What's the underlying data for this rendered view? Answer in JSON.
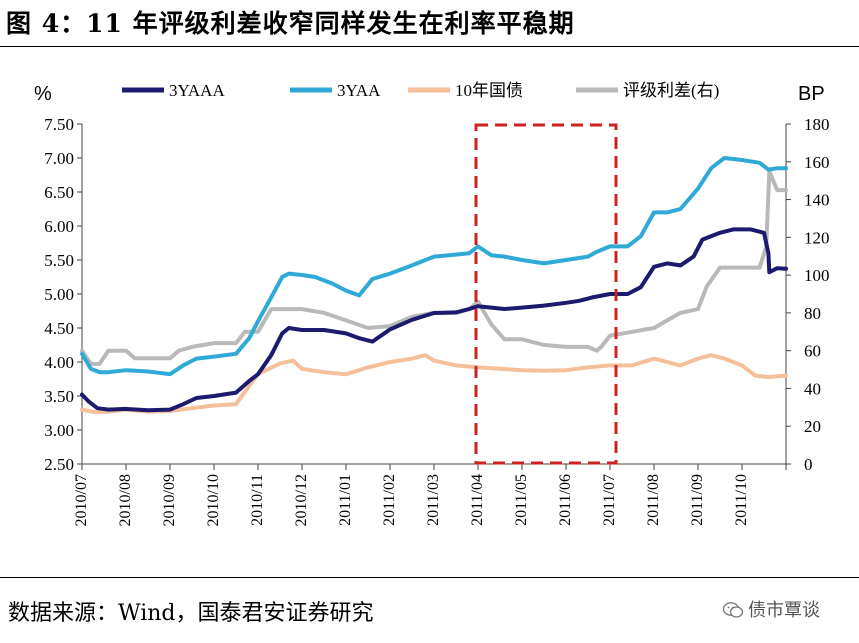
{
  "figure": {
    "title": "图 4：11 年评级利差收窄同样发生在利率平稳期",
    "source": "数据来源：Wind，国泰君安证券研究",
    "watermark": "债市覃谈"
  },
  "colors": {
    "aaa3y": "#1b1a6e",
    "aa3y": "#2fa9d6",
    "gov10y": "#f5bf9a",
    "spread": "#b9b9b9",
    "highlight": "#cc2222"
  },
  "chart_data": {
    "type": "line",
    "left_axis_unit": "%",
    "right_axis_unit": "BP",
    "ylim_left": [
      2.5,
      7.5
    ],
    "ylim_right": [
      0,
      180
    ],
    "yticks_left": [
      "7.50",
      "7.00",
      "6.50",
      "6.00",
      "5.50",
      "5.00",
      "4.50",
      "4.00",
      "3.50",
      "3.00",
      "2.50"
    ],
    "yticks_right": [
      "180",
      "160",
      "140",
      "120",
      "100",
      "80",
      "60",
      "40",
      "20",
      "0"
    ],
    "x_categories": [
      "2010/07",
      "2010/08",
      "2010/09",
      "2010/10",
      "2010/11",
      "2010/12",
      "2011/01",
      "2011/02",
      "2011/03",
      "2011/04",
      "2011/05",
      "2011/06",
      "2011/07",
      "2011/08",
      "2011/09",
      "2011/10"
    ],
    "highlight_range": [
      "2011/04",
      "2011/06"
    ],
    "series": [
      {
        "name": "3YAAA",
        "axis": "left",
        "color_key": "aaa3y",
        "points": [
          [
            0,
            3.52
          ],
          [
            0.15,
            3.42
          ],
          [
            0.35,
            3.32
          ],
          [
            0.6,
            3.3
          ],
          [
            1,
            3.31
          ],
          [
            1.5,
            3.29
          ],
          [
            2,
            3.3
          ],
          [
            2.3,
            3.38
          ],
          [
            2.6,
            3.47
          ],
          [
            3,
            3.5
          ],
          [
            3.5,
            3.55
          ],
          [
            3.8,
            3.72
          ],
          [
            4,
            3.82
          ],
          [
            4.3,
            4.1
          ],
          [
            4.55,
            4.42
          ],
          [
            4.7,
            4.5
          ],
          [
            5,
            4.47
          ],
          [
            5.5,
            4.47
          ],
          [
            6,
            4.42
          ],
          [
            6.3,
            4.35
          ],
          [
            6.6,
            4.3
          ],
          [
            7,
            4.48
          ],
          [
            7.5,
            4.62
          ],
          [
            8,
            4.72
          ],
          [
            8.5,
            4.73
          ],
          [
            8.8,
            4.78
          ],
          [
            9,
            4.82
          ],
          [
            9.3,
            4.8
          ],
          [
            9.6,
            4.78
          ],
          [
            10,
            4.8
          ],
          [
            10.5,
            4.83
          ],
          [
            11,
            4.87
          ],
          [
            11.3,
            4.9
          ],
          [
            11.6,
            4.95
          ],
          [
            12,
            5.0
          ],
          [
            12.4,
            5.0
          ],
          [
            12.7,
            5.1
          ],
          [
            13,
            5.4
          ],
          [
            13.3,
            5.45
          ],
          [
            13.6,
            5.42
          ],
          [
            13.9,
            5.55
          ],
          [
            14.1,
            5.8
          ],
          [
            14.5,
            5.9
          ],
          [
            14.8,
            5.95
          ],
          [
            15.2,
            5.95
          ],
          [
            15.5,
            5.9
          ],
          [
            15.6,
            5.6
          ],
          [
            15.62,
            5.32
          ],
          [
            15.8,
            5.38
          ],
          [
            16,
            5.37
          ]
        ]
      },
      {
        "name": "3YAA",
        "axis": "left",
        "color_key": "aa3y",
        "points": [
          [
            0,
            4.12
          ],
          [
            0.2,
            3.9
          ],
          [
            0.4,
            3.85
          ],
          [
            0.6,
            3.85
          ],
          [
            1,
            3.88
          ],
          [
            1.5,
            3.86
          ],
          [
            2,
            3.82
          ],
          [
            2.3,
            3.95
          ],
          [
            2.6,
            4.05
          ],
          [
            3,
            4.08
          ],
          [
            3.5,
            4.12
          ],
          [
            3.8,
            4.35
          ],
          [
            4,
            4.6
          ],
          [
            4.3,
            4.95
          ],
          [
            4.55,
            5.25
          ],
          [
            4.7,
            5.3
          ],
          [
            5,
            5.28
          ],
          [
            5.3,
            5.25
          ],
          [
            5.7,
            5.15
          ],
          [
            6,
            5.05
          ],
          [
            6.3,
            4.98
          ],
          [
            6.6,
            5.22
          ],
          [
            7,
            5.3
          ],
          [
            7.5,
            5.42
          ],
          [
            8,
            5.55
          ],
          [
            8.5,
            5.58
          ],
          [
            8.8,
            5.6
          ],
          [
            9,
            5.7
          ],
          [
            9.3,
            5.57
          ],
          [
            9.6,
            5.55
          ],
          [
            10,
            5.5
          ],
          [
            10.5,
            5.45
          ],
          [
            11,
            5.5
          ],
          [
            11.5,
            5.55
          ],
          [
            11.7,
            5.62
          ],
          [
            12,
            5.7
          ],
          [
            12.4,
            5.7
          ],
          [
            12.7,
            5.85
          ],
          [
            13,
            6.2
          ],
          [
            13.3,
            6.2
          ],
          [
            13.6,
            6.25
          ],
          [
            14,
            6.55
          ],
          [
            14.3,
            6.85
          ],
          [
            14.6,
            7.0
          ],
          [
            15,
            6.97
          ],
          [
            15.4,
            6.93
          ],
          [
            15.6,
            6.83
          ],
          [
            15.8,
            6.85
          ],
          [
            16,
            6.85
          ]
        ]
      },
      {
        "name": "10年国债",
        "axis": "left",
        "color_key": "gov10y",
        "points": [
          [
            0,
            3.3
          ],
          [
            0.3,
            3.26
          ],
          [
            0.6,
            3.27
          ],
          [
            1,
            3.3
          ],
          [
            1.5,
            3.27
          ],
          [
            2,
            3.28
          ],
          [
            2.5,
            3.32
          ],
          [
            3,
            3.36
          ],
          [
            3.5,
            3.38
          ],
          [
            3.8,
            3.65
          ],
          [
            4,
            3.82
          ],
          [
            4.5,
            3.98
          ],
          [
            4.8,
            4.02
          ],
          [
            5,
            3.9
          ],
          [
            5.5,
            3.85
          ],
          [
            6,
            3.82
          ],
          [
            6.5,
            3.92
          ],
          [
            7,
            4.0
          ],
          [
            7.5,
            4.05
          ],
          [
            7.8,
            4.1
          ],
          [
            8,
            4.02
          ],
          [
            8.5,
            3.95
          ],
          [
            9,
            3.92
          ],
          [
            9.5,
            3.9
          ],
          [
            10,
            3.88
          ],
          [
            10.5,
            3.87
          ],
          [
            11,
            3.88
          ],
          [
            11.5,
            3.92
          ],
          [
            12,
            3.95
          ],
          [
            12.5,
            3.95
          ],
          [
            13,
            4.05
          ],
          [
            13.3,
            4.0
          ],
          [
            13.6,
            3.95
          ],
          [
            14,
            4.05
          ],
          [
            14.3,
            4.1
          ],
          [
            14.6,
            4.05
          ],
          [
            15,
            3.95
          ],
          [
            15.3,
            3.8
          ],
          [
            15.6,
            3.78
          ],
          [
            16,
            3.8
          ]
        ]
      },
      {
        "name": "评级利差(右)",
        "axis": "right",
        "color_key": "spread",
        "points": [
          [
            0,
            60
          ],
          [
            0.2,
            53
          ],
          [
            0.4,
            53
          ],
          [
            0.6,
            60
          ],
          [
            1,
            60
          ],
          [
            1.2,
            56
          ],
          [
            2,
            56
          ],
          [
            2.2,
            60
          ],
          [
            2.5,
            62
          ],
          [
            3,
            64
          ],
          [
            3.5,
            64
          ],
          [
            3.7,
            70
          ],
          [
            4,
            70
          ],
          [
            4.3,
            82
          ],
          [
            5,
            82
          ],
          [
            5.5,
            80
          ],
          [
            6,
            76
          ],
          [
            6.5,
            72
          ],
          [
            7,
            73
          ],
          [
            7.5,
            78
          ],
          [
            8,
            80
          ],
          [
            8.5,
            80
          ],
          [
            8.8,
            82
          ],
          [
            9,
            86
          ],
          [
            9.3,
            74
          ],
          [
            9.6,
            66
          ],
          [
            10,
            66
          ],
          [
            10.5,
            63
          ],
          [
            11,
            62
          ],
          [
            11.5,
            62
          ],
          [
            11.7,
            60
          ],
          [
            11.8,
            62
          ],
          [
            12,
            68
          ],
          [
            12.5,
            70
          ],
          [
            13,
            72
          ],
          [
            13.3,
            76
          ],
          [
            13.6,
            80
          ],
          [
            14,
            82
          ],
          [
            14.2,
            94
          ],
          [
            14.5,
            104
          ],
          [
            15,
            104
          ],
          [
            15.4,
            104
          ],
          [
            15.55,
            115
          ],
          [
            15.62,
            155
          ],
          [
            15.8,
            145
          ],
          [
            16,
            145
          ]
        ]
      }
    ]
  }
}
